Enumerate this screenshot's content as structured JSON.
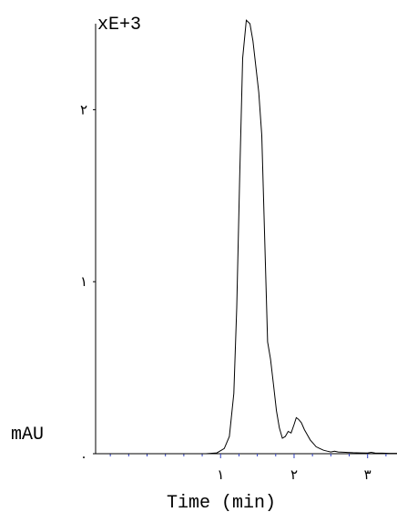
{
  "chart_data": {
    "type": "line",
    "multiplier_label": "xE+3",
    "ylabel": "mAU",
    "xlabel": "Time (min)",
    "xlim": [
      -0.7,
      3.4
    ],
    "ylim": [
      0,
      2.5
    ],
    "x_ticks": [
      {
        "value": 1,
        "label": "١"
      },
      {
        "value": 2,
        "label": "٢"
      },
      {
        "value": 3,
        "label": "٣"
      }
    ],
    "y_ticks": [
      {
        "value": 0,
        "label": "."
      },
      {
        "value": 1,
        "label": "١"
      },
      {
        "value": 2,
        "label": "٢"
      }
    ],
    "x_minor_step": 0.25,
    "series": [
      {
        "color": "#000000",
        "x": [
          -0.7,
          0.25,
          0.8,
          0.95,
          1.05,
          1.12,
          1.18,
          1.22,
          1.26,
          1.3,
          1.35,
          1.4,
          1.44,
          1.48,
          1.52,
          1.56,
          1.6,
          1.64,
          1.68,
          1.72,
          1.76,
          1.8,
          1.84,
          1.88,
          1.92,
          1.96,
          2.0,
          2.03,
          2.06,
          2.1,
          2.14,
          2.18,
          2.22,
          2.26,
          2.3,
          2.35,
          2.4,
          2.45,
          2.5,
          2.55,
          2.6,
          2.7,
          2.8,
          2.9,
          3.0,
          3.05,
          3.1,
          3.2,
          3.3,
          3.4
        ],
        "y": [
          0,
          0,
          0,
          0.005,
          0.03,
          0.1,
          0.35,
          0.85,
          1.6,
          2.3,
          2.52,
          2.5,
          2.4,
          2.25,
          2.1,
          1.85,
          1.25,
          0.65,
          0.55,
          0.4,
          0.25,
          0.15,
          0.09,
          0.1,
          0.13,
          0.12,
          0.17,
          0.21,
          0.2,
          0.18,
          0.14,
          0.11,
          0.08,
          0.06,
          0.04,
          0.03,
          0.02,
          0.015,
          0.01,
          0.015,
          0.01,
          0.008,
          0.006,
          0.005,
          0.004,
          0.008,
          0.004,
          0.003,
          0.002,
          0.002
        ]
      }
    ]
  }
}
